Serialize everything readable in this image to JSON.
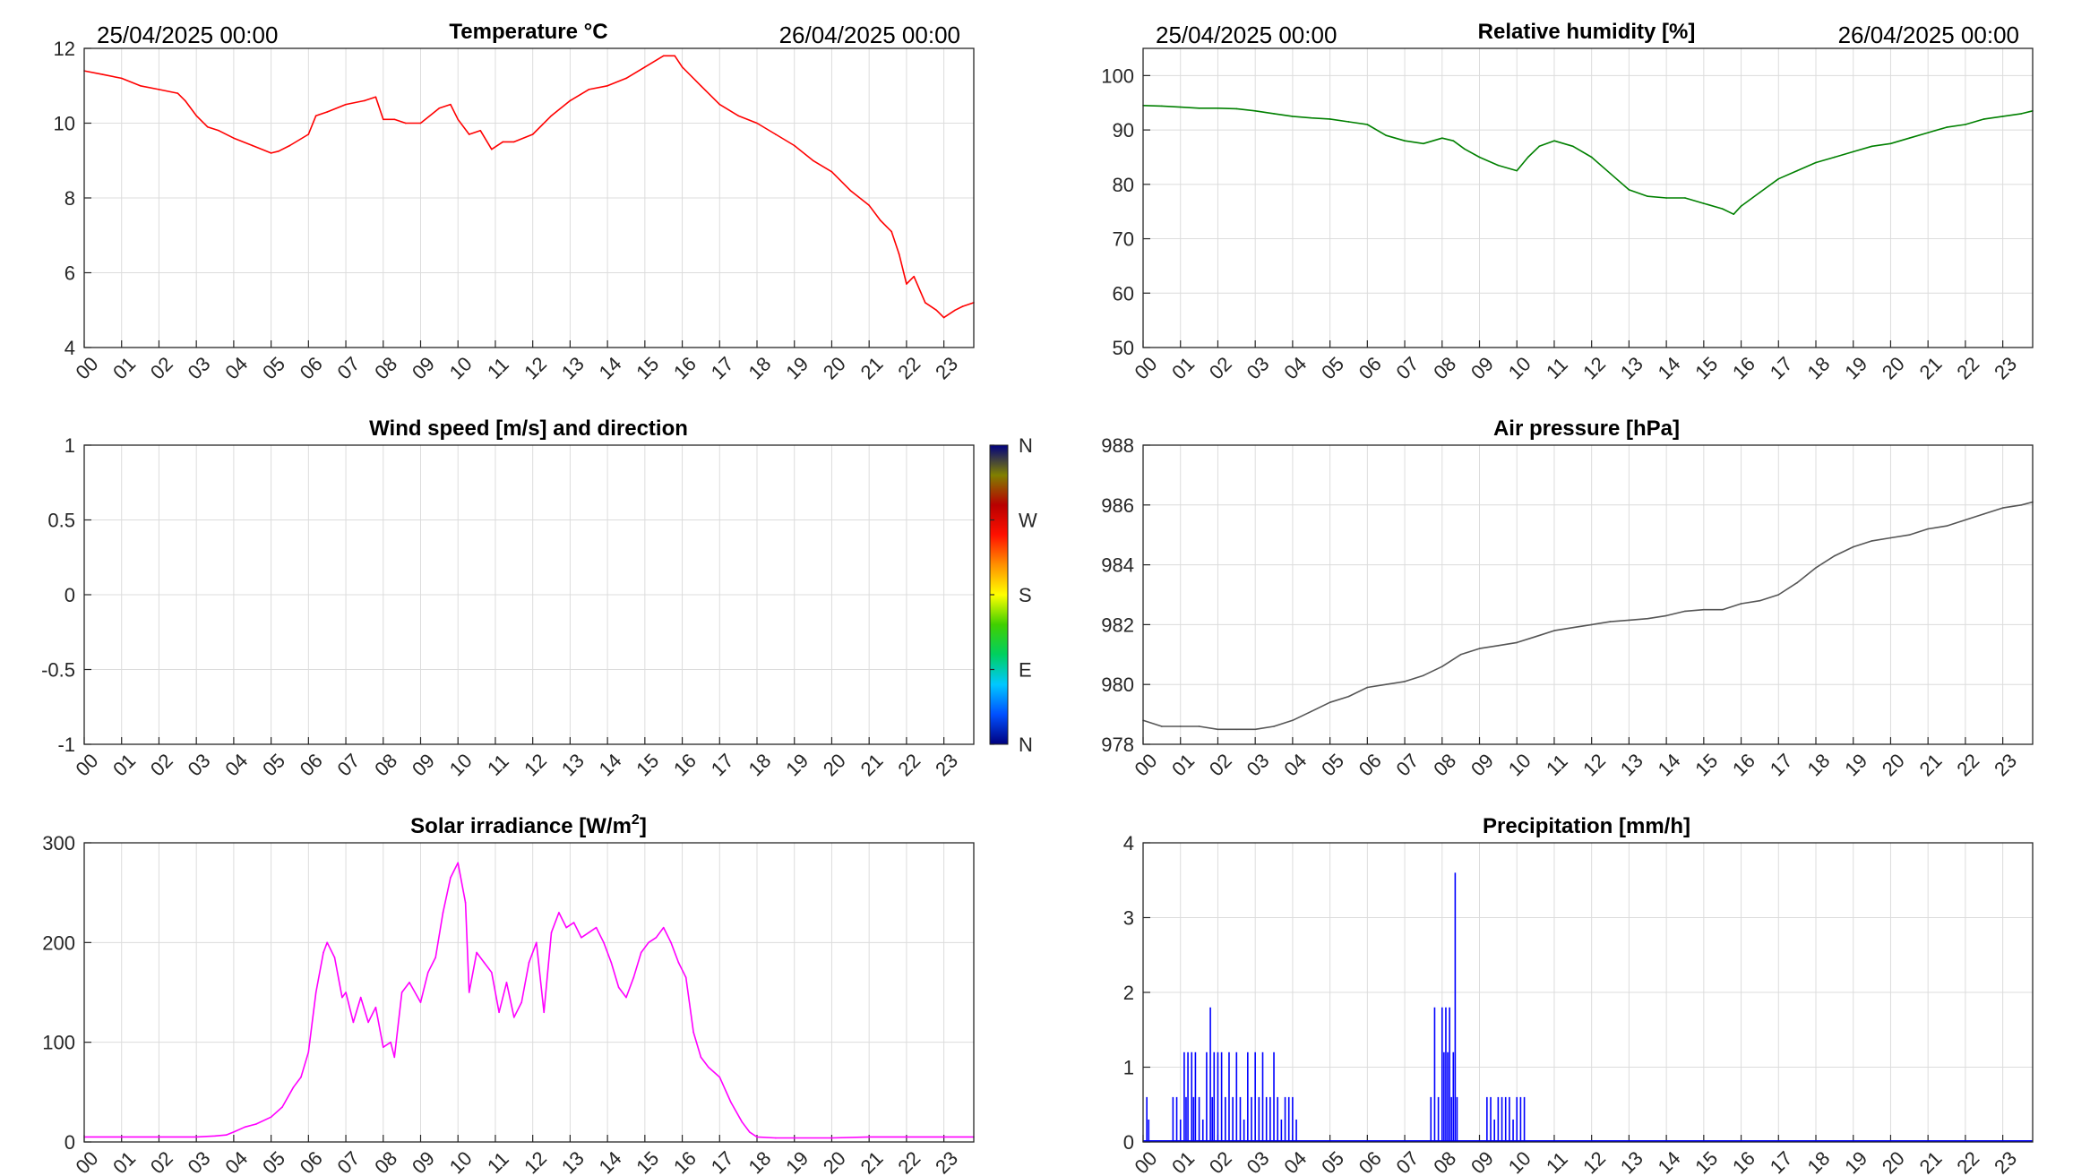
{
  "chart_data": [
    {
      "id": "temperature",
      "type": "line",
      "title": "Temperature °C",
      "date_start": "25/04/2025 00:00",
      "date_end": "26/04/2025 00:00",
      "color": "#ff0000",
      "xlim": [
        0,
        23.8
      ],
      "ylim": [
        4,
        12
      ],
      "yticks": [
        "4",
        "6",
        "8",
        "10",
        "12"
      ],
      "xticks": [
        "00",
        "01",
        "02",
        "03",
        "04",
        "05",
        "06",
        "07",
        "08",
        "09",
        "10",
        "11",
        "12",
        "13",
        "14",
        "15",
        "16",
        "17",
        "18",
        "19",
        "20",
        "21",
        "22",
        "23"
      ],
      "x": [
        0,
        0.5,
        1,
        1.5,
        2,
        2.5,
        2.7,
        3,
        3.3,
        3.6,
        4,
        4.5,
        5,
        5.2,
        5.5,
        6,
        6.2,
        6.5,
        7,
        7.5,
        7.8,
        8,
        8.3,
        8.6,
        9,
        9.5,
        9.8,
        10,
        10.3,
        10.6,
        10.9,
        11.2,
        11.5,
        12,
        12.5,
        13,
        13.5,
        14,
        14.5,
        15,
        15.5,
        15.8,
        16,
        16.5,
        17,
        17.5,
        18,
        18.5,
        19,
        19.5,
        20,
        20.5,
        21,
        21.3,
        21.6,
        21.8,
        22,
        22.2,
        22.5,
        22.8,
        23,
        23.3,
        23.5,
        23.8
      ],
      "y": [
        11.4,
        11.3,
        11.2,
        11.0,
        10.9,
        10.8,
        10.6,
        10.2,
        9.9,
        9.8,
        9.6,
        9.4,
        9.2,
        9.25,
        9.4,
        9.7,
        10.2,
        10.3,
        10.5,
        10.6,
        10.7,
        10.1,
        10.1,
        10.0,
        10.0,
        10.4,
        10.5,
        10.1,
        9.7,
        9.8,
        9.3,
        9.5,
        9.5,
        9.7,
        10.2,
        10.6,
        10.9,
        11.0,
        11.2,
        11.5,
        11.8,
        11.8,
        11.5,
        11.0,
        10.5,
        10.2,
        10.0,
        9.7,
        9.4,
        9.0,
        8.7,
        8.2,
        7.8,
        7.4,
        7.1,
        6.5,
        5.7,
        5.9,
        5.2,
        5.0,
        4.8,
        5.0,
        5.1,
        5.2
      ]
    },
    {
      "id": "humidity",
      "type": "line",
      "title": "Relative humidity [%]",
      "date_start": "25/04/2025 00:00",
      "date_end": "26/04/2025 00:00",
      "color": "#008000",
      "xlim": [
        0,
        23.8
      ],
      "ylim": [
        50,
        105
      ],
      "yticks": [
        "50",
        "60",
        "70",
        "80",
        "90",
        "100"
      ],
      "xticks": [
        "00",
        "01",
        "02",
        "03",
        "04",
        "05",
        "06",
        "07",
        "08",
        "09",
        "10",
        "11",
        "12",
        "13",
        "14",
        "15",
        "16",
        "17",
        "18",
        "19",
        "20",
        "21",
        "22",
        "23"
      ],
      "x": [
        0,
        0.5,
        1,
        1.5,
        2,
        2.5,
        3,
        3.5,
        4,
        4.5,
        5,
        5.5,
        6,
        6.5,
        7,
        7.5,
        8,
        8.3,
        8.6,
        9,
        9.5,
        10,
        10.3,
        10.6,
        11,
        11.5,
        12,
        12.5,
        13,
        13.5,
        14,
        14.5,
        15,
        15.5,
        15.8,
        16,
        16.5,
        17,
        17.5,
        18,
        18.5,
        19,
        19.5,
        20,
        20.5,
        21,
        21.5,
        22,
        22.5,
        23,
        23.5,
        23.8
      ],
      "y": [
        94.5,
        94.4,
        94.2,
        94.0,
        94.0,
        93.9,
        93.5,
        93.0,
        92.5,
        92.2,
        92.0,
        91.5,
        91.0,
        89.0,
        88.0,
        87.5,
        88.5,
        88.0,
        86.5,
        85.0,
        83.5,
        82.5,
        85.0,
        87.0,
        88.0,
        87.0,
        85.0,
        82.0,
        79.0,
        77.8,
        77.5,
        77.5,
        76.5,
        75.5,
        74.5,
        76.0,
        78.5,
        81.0,
        82.5,
        84.0,
        85.0,
        86.0,
        87.0,
        87.5,
        88.5,
        89.5,
        90.5,
        91.0,
        92.0,
        92.5,
        93.0,
        93.5
      ]
    },
    {
      "id": "wind",
      "type": "scatter",
      "title": "Wind speed [m/s] and direction",
      "xlim": [
        0,
        23.8
      ],
      "ylim": [
        -1,
        1
      ],
      "yticks": [
        "-1",
        "-0.5",
        "0",
        "0.5",
        "1"
      ],
      "xticks": [
        "00",
        "01",
        "02",
        "03",
        "04",
        "05",
        "06",
        "07",
        "08",
        "09",
        "10",
        "11",
        "12",
        "13",
        "14",
        "15",
        "16",
        "17",
        "18",
        "19",
        "20",
        "21",
        "22",
        "23"
      ],
      "colorbar_labels": [
        "N",
        "W",
        "S",
        "E",
        "N"
      ],
      "colorbar_colors": [
        "#00007f",
        "#0050ff",
        "#00c8ff",
        "#00d060",
        "#40d000",
        "#ffff00",
        "#ff9000",
        "#ff1000",
        "#b80000",
        "#808000",
        "#00007f"
      ]
    },
    {
      "id": "pressure",
      "type": "line",
      "title": "Air pressure [hPa]",
      "color": "#555555",
      "xlim": [
        0,
        23.8
      ],
      "ylim": [
        978,
        988
      ],
      "yticks": [
        "978",
        "980",
        "982",
        "984",
        "986",
        "988"
      ],
      "xticks": [
        "00",
        "01",
        "02",
        "03",
        "04",
        "05",
        "06",
        "07",
        "08",
        "09",
        "10",
        "11",
        "12",
        "13",
        "14",
        "15",
        "16",
        "17",
        "18",
        "19",
        "20",
        "21",
        "22",
        "23"
      ],
      "x": [
        0,
        0.5,
        1,
        1.5,
        2,
        2.5,
        3,
        3.5,
        4,
        4.5,
        5,
        5.5,
        6,
        6.5,
        7,
        7.5,
        8,
        8.5,
        9,
        9.5,
        10,
        10.5,
        11,
        11.5,
        12,
        12.5,
        13,
        13.5,
        14,
        14.5,
        15,
        15.5,
        16,
        16.5,
        17,
        17.5,
        18,
        18.5,
        19,
        19.5,
        20,
        20.5,
        21,
        21.5,
        22,
        22.5,
        23,
        23.5,
        23.8
      ],
      "y": [
        978.8,
        978.6,
        978.6,
        978.6,
        978.5,
        978.5,
        978.5,
        978.6,
        978.8,
        979.1,
        979.4,
        979.6,
        979.9,
        980.0,
        980.1,
        980.3,
        980.6,
        981.0,
        981.2,
        981.3,
        981.4,
        981.6,
        981.8,
        981.9,
        982.0,
        982.1,
        982.15,
        982.2,
        982.3,
        982.45,
        982.5,
        982.5,
        982.7,
        982.8,
        983.0,
        983.4,
        983.9,
        984.3,
        984.6,
        984.8,
        984.9,
        985.0,
        985.2,
        985.3,
        985.5,
        985.7,
        985.9,
        986.0,
        986.1
      ]
    },
    {
      "id": "solar",
      "type": "line",
      "title": "Solar irradiance [W/m",
      "title_superscript": "2",
      "title_suffix": "]",
      "color": "#ff00ff",
      "xlim": [
        0,
        23.8
      ],
      "ylim": [
        0,
        300
      ],
      "yticks": [
        "0",
        "100",
        "200",
        "300"
      ],
      "xticks": [
        "00",
        "01",
        "02",
        "03",
        "04",
        "05",
        "06",
        "07",
        "08",
        "09",
        "10",
        "11",
        "12",
        "13",
        "14",
        "15",
        "16",
        "17",
        "18",
        "19",
        "20",
        "21",
        "22",
        "23"
      ],
      "x": [
        0,
        1,
        2,
        3,
        3.5,
        3.8,
        4,
        4.3,
        4.6,
        5,
        5.3,
        5.6,
        5.8,
        6,
        6.2,
        6.4,
        6.5,
        6.7,
        6.9,
        7,
        7.2,
        7.4,
        7.6,
        7.8,
        8,
        8.2,
        8.3,
        8.5,
        8.7,
        9,
        9.2,
        9.4,
        9.6,
        9.8,
        10,
        10.2,
        10.3,
        10.5,
        10.7,
        10.9,
        11.1,
        11.3,
        11.5,
        11.7,
        11.9,
        12.1,
        12.3,
        12.5,
        12.7,
        12.9,
        13.1,
        13.3,
        13.5,
        13.7,
        13.9,
        14.1,
        14.3,
        14.5,
        14.7,
        14.9,
        15.1,
        15.3,
        15.5,
        15.7,
        15.9,
        16.1,
        16.3,
        16.5,
        16.7,
        17,
        17.3,
        17.6,
        17.8,
        18,
        18.5,
        19,
        20,
        21,
        22,
        23,
        23.8
      ],
      "y": [
        5,
        5,
        5,
        5,
        6,
        7,
        10,
        15,
        18,
        25,
        35,
        55,
        65,
        90,
        150,
        190,
        200,
        185,
        145,
        150,
        120,
        145,
        120,
        135,
        95,
        100,
        85,
        150,
        160,
        140,
        170,
        185,
        230,
        265,
        280,
        240,
        150,
        190,
        180,
        170,
        130,
        160,
        125,
        140,
        180,
        200,
        130,
        210,
        230,
        215,
        220,
        205,
        210,
        215,
        200,
        180,
        155,
        145,
        165,
        190,
        200,
        205,
        215,
        200,
        180,
        165,
        110,
        85,
        75,
        65,
        40,
        20,
        10,
        5,
        4,
        4,
        4,
        5,
        5,
        5,
        5
      ]
    },
    {
      "id": "precipitation",
      "type": "bar",
      "title": "Precipitation [mm/h]",
      "color": "#0000ff",
      "xlim": [
        0,
        23.8
      ],
      "ylim": [
        0,
        4
      ],
      "yticks": [
        "0",
        "1",
        "2",
        "3",
        "4"
      ],
      "xticks": [
        "00",
        "01",
        "02",
        "03",
        "04",
        "05",
        "06",
        "07",
        "08",
        "09",
        "10",
        "11",
        "12",
        "13",
        "14",
        "15",
        "16",
        "17",
        "18",
        "19",
        "20",
        "21",
        "22",
        "23"
      ],
      "x": [
        0.1,
        0.15,
        0.8,
        0.9,
        1.0,
        1.1,
        1.15,
        1.2,
        1.3,
        1.35,
        1.4,
        1.5,
        1.6,
        1.7,
        1.8,
        1.85,
        1.9,
        2.0,
        2.1,
        2.2,
        2.3,
        2.4,
        2.5,
        2.6,
        2.7,
        2.8,
        2.9,
        3.0,
        3.1,
        3.2,
        3.3,
        3.4,
        3.5,
        3.6,
        3.7,
        3.8,
        3.9,
        4.0,
        4.1,
        7.7,
        7.8,
        7.9,
        8.0,
        8.05,
        8.1,
        8.15,
        8.2,
        8.25,
        8.3,
        8.35,
        8.4,
        9.2,
        9.3,
        9.4,
        9.5,
        9.6,
        9.7,
        9.8,
        9.9,
        10.0,
        10.1,
        10.2
      ],
      "values": [
        0.6,
        0.3,
        0.6,
        0.6,
        0.3,
        1.2,
        0.6,
        1.2,
        1.2,
        0.6,
        1.2,
        0.6,
        0.3,
        1.2,
        1.8,
        0.6,
        1.2,
        1.2,
        1.2,
        0.6,
        1.2,
        0.6,
        1.2,
        0.6,
        0.3,
        1.2,
        0.6,
        1.2,
        0.6,
        1.2,
        0.6,
        0.6,
        1.2,
        0.6,
        0.3,
        0.6,
        0.6,
        0.6,
        0.3,
        0.6,
        1.8,
        0.6,
        1.8,
        1.2,
        1.8,
        1.2,
        1.8,
        0.6,
        1.2,
        3.6,
        0.6,
        0.6,
        0.6,
        0.3,
        0.6,
        0.6,
        0.6,
        0.6,
        0.3,
        0.6,
        0.6,
        0.6
      ]
    }
  ]
}
